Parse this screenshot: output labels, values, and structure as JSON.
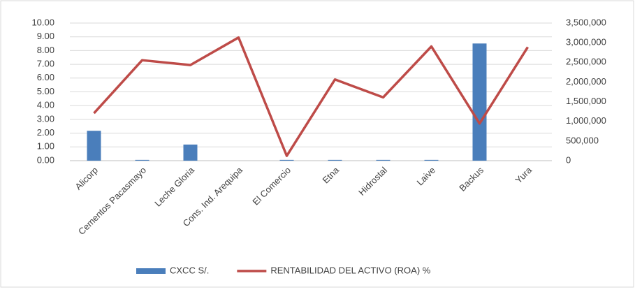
{
  "chart_data": {
    "type": "bar-line",
    "categories": [
      "Alicorp",
      "Cementos Pacasmayo",
      "Leche Gloria",
      "Cons. Ind. Arequipa",
      "El Comercio",
      "Etna",
      "Hidrostal",
      "Laive",
      "Backus",
      "Yura"
    ],
    "series": [
      {
        "name": "CXCC S/.",
        "type": "bar",
        "color": "#4a7ebb",
        "axis": "y2",
        "values": [
          760000,
          20000,
          410000,
          0,
          20000,
          20000,
          20000,
          20000,
          2980000,
          0
        ]
      },
      {
        "name": "RENTABILIDAD DEL ACTIVO (ROA) %",
        "type": "line",
        "color": "#be4b48",
        "axis": "y",
        "values": [
          3.45,
          7.3,
          6.95,
          8.95,
          0.35,
          5.9,
          4.6,
          8.3,
          2.7,
          8.25
        ]
      }
    ],
    "ylim": [
      0,
      10
    ],
    "yticks": [
      {
        "value": 0,
        "label": "0.00"
      },
      {
        "value": 1,
        "label": "1.00"
      },
      {
        "value": 2,
        "label": "2.00"
      },
      {
        "value": 3,
        "label": "3.00"
      },
      {
        "value": 4,
        "label": "4.00"
      },
      {
        "value": 5,
        "label": "5.00"
      },
      {
        "value": 6,
        "label": "6.00"
      },
      {
        "value": 7,
        "label": "7.00"
      },
      {
        "value": 8,
        "label": "8.00"
      },
      {
        "value": 9,
        "label": "9.00"
      },
      {
        "value": 10,
        "label": "10.00"
      }
    ],
    "y2lim": [
      0,
      3500000
    ],
    "y2ticks": [
      0,
      {
        "value": 500000,
        "label": "500,000"
      },
      {
        "value": 1000000,
        "label": "1,000,000"
      },
      {
        "value": 1500000,
        "label": "1,500,000"
      },
      {
        "value": 2000000,
        "label": "2,000,000"
      },
      {
        "value": 2500000,
        "label": "2,500,000"
      },
      {
        "value": 3000000,
        "label": "3,000,000"
      },
      {
        "value": 3500000,
        "label": "3,500,000"
      }
    ],
    "grid": true,
    "legend": "bottom"
  }
}
